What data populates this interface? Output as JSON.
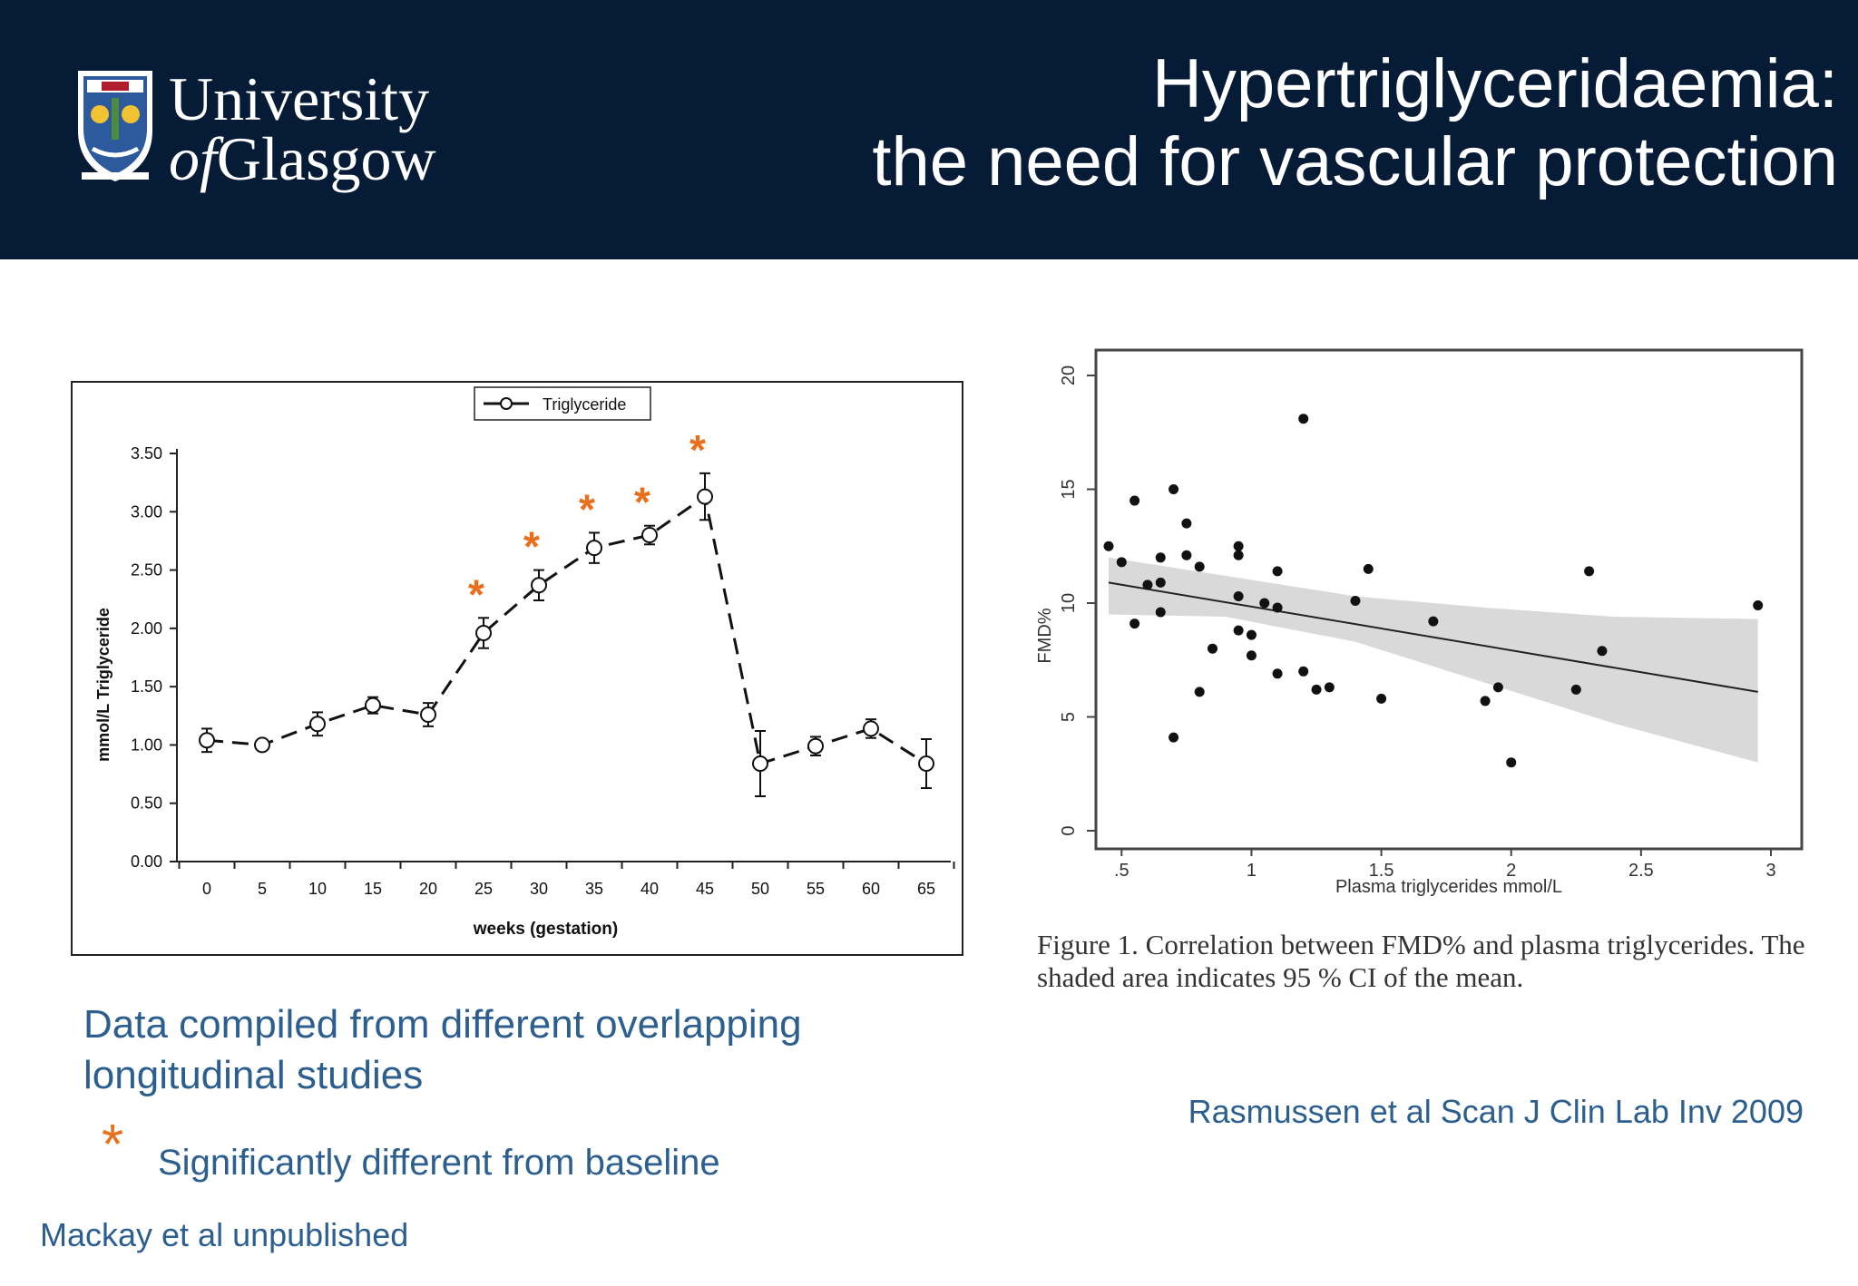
{
  "header": {
    "logo_line1": "University",
    "logo_line2_of": "of",
    "logo_line2": "Glasgow",
    "title_line1": "Hypertriglyceridaemia:",
    "title_line2": "the need for vascular protection",
    "background": "#061b36"
  },
  "colors": {
    "accent_star": "#e86f1c",
    "text_blue": "#2c5f8f"
  },
  "chart_data": [
    {
      "type": "line",
      "legend": [
        "Triglyceride"
      ],
      "legend_position": "top-center",
      "xlabel": "weeks (gestation)",
      "ylabel": "mmol/L Triglyceride",
      "x": [
        0,
        5,
        10,
        15,
        20,
        25,
        30,
        35,
        40,
        45,
        50,
        55,
        60,
        65
      ],
      "xticks": [
        "0",
        "5",
        "10",
        "15",
        "20",
        "25",
        "30",
        "35",
        "40",
        "45",
        "50",
        "55",
        "60",
        "65"
      ],
      "yticks": [
        "0.00",
        "0.50",
        "1.00",
        "1.50",
        "2.00",
        "2.50",
        "3.00",
        "3.50"
      ],
      "ylim": [
        0,
        3.5
      ],
      "series": [
        {
          "name": "Triglyceride",
          "values": [
            1.04,
            1.0,
            1.18,
            1.34,
            1.26,
            1.96,
            2.37,
            2.69,
            2.8,
            3.13,
            0.84,
            0.99,
            1.14,
            0.84
          ],
          "error": [
            0.1,
            0.04,
            0.1,
            0.07,
            0.1,
            0.13,
            0.13,
            0.13,
            0.08,
            0.2,
            0.28,
            0.08,
            0.08,
            0.21
          ]
        }
      ],
      "significant_at": [
        25,
        30,
        35,
        40,
        45
      ],
      "marker_symbol": "*"
    },
    {
      "type": "scatter",
      "xlabel": "Plasma triglycerides mmol/L",
      "ylabel": "FMD%",
      "xticks": [
        ".5",
        "1",
        "1.5",
        "2",
        "2.5",
        "3"
      ],
      "yticks": [
        "0",
        "5",
        "10",
        "15",
        "20"
      ],
      "xlim": [
        0.45,
        3.0
      ],
      "ylim": [
        0,
        20
      ],
      "points": [
        [
          0.45,
          12.5
        ],
        [
          0.5,
          11.8
        ],
        [
          0.55,
          14.5
        ],
        [
          0.55,
          9.1
        ],
        [
          0.6,
          10.8
        ],
        [
          0.65,
          12.0
        ],
        [
          0.65,
          10.9
        ],
        [
          0.65,
          9.6
        ],
        [
          0.7,
          15.0
        ],
        [
          0.7,
          4.1
        ],
        [
          0.75,
          13.5
        ],
        [
          0.75,
          12.1
        ],
        [
          0.8,
          11.6
        ],
        [
          0.8,
          6.1
        ],
        [
          0.85,
          8.0
        ],
        [
          0.95,
          12.5
        ],
        [
          0.95,
          12.1
        ],
        [
          0.95,
          10.3
        ],
        [
          0.95,
          8.8
        ],
        [
          1.0,
          8.6
        ],
        [
          1.0,
          7.7
        ],
        [
          1.05,
          10.0
        ],
        [
          1.1,
          11.4
        ],
        [
          1.1,
          9.8
        ],
        [
          1.1,
          6.9
        ],
        [
          1.2,
          18.1
        ],
        [
          1.2,
          7.0
        ],
        [
          1.25,
          6.2
        ],
        [
          1.3,
          6.3
        ],
        [
          1.4,
          10.1
        ],
        [
          1.45,
          11.5
        ],
        [
          1.5,
          5.8
        ],
        [
          1.7,
          9.2
        ],
        [
          1.9,
          5.7
        ],
        [
          1.95,
          6.3
        ],
        [
          2.0,
          3.0
        ],
        [
          2.25,
          6.2
        ],
        [
          2.3,
          11.4
        ],
        [
          2.35,
          7.9
        ],
        [
          2.95,
          9.9
        ]
      ],
      "fit": {
        "x": [
          0.45,
          2.95
        ],
        "y": [
          10.9,
          6.1
        ]
      },
      "ci_upper": [
        12.0,
        11.2,
        10.3,
        9.8,
        9.4,
        9.3
      ],
      "ci_lower": [
        9.5,
        9.4,
        8.3,
        6.5,
        4.7,
        3.0
      ],
      "ci_x": [
        0.45,
        0.9,
        1.4,
        1.9,
        2.4,
        2.95
      ],
      "caption": "Figure 1. Correlation between FMD% and plasma triglycerides. The shaded area indicates 95 % CI of the mean."
    }
  ],
  "notes": {
    "line1": "Data compiled from different overlapping",
    "line2": "longitudinal studies",
    "star": "*",
    "sig_text": "Significantly different from baseline",
    "source_left": "Mackay et al unpublished",
    "source_right": "Rasmussen et al Scan J Clin Lab Inv 2009"
  }
}
